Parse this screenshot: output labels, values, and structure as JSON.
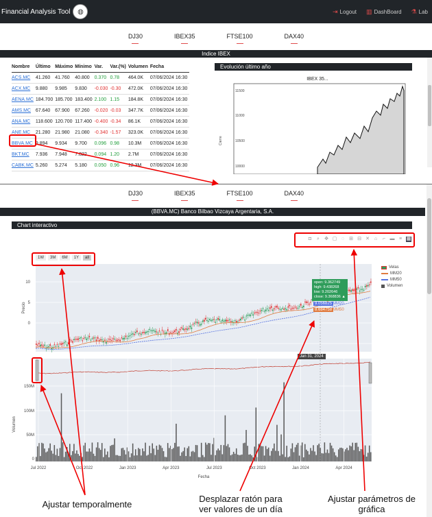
{
  "navbar": {
    "brand": "Financial Analysis Tool",
    "links": [
      {
        "label": "Logout",
        "icon": "logout-icon"
      },
      {
        "label": "DashBoard",
        "icon": "bar-chart-icon"
      },
      {
        "label": "Lab",
        "icon": "flask-icon"
      }
    ]
  },
  "index_tabs": [
    "DJ30",
    "IBEX35",
    "FTSE100",
    "DAX40"
  ],
  "top": {
    "section_title": "Indice IBEX",
    "table": {
      "headers": [
        "Nombre",
        "Último",
        "Máximo",
        "Mínimo",
        "Var.",
        "Var.(%)",
        "Volumen",
        "Fecha"
      ],
      "rows": [
        {
          "name": "ACS.MC",
          "last": "41.260",
          "max": "41.760",
          "min": "40.800",
          "var": "0.370",
          "varp": "0.78",
          "vol": "464.0K",
          "date": "07/06/2024 16:30",
          "sign": "pos"
        },
        {
          "name": "ACX.MC",
          "last": "9.880",
          "max": "9.985",
          "min": "9.830",
          "var": "-0.030",
          "varp": "-0.30",
          "vol": "472.0K",
          "date": "07/06/2024 16:30",
          "sign": "neg"
        },
        {
          "name": "AENA.MC",
          "last": "184.700",
          "max": "185.700",
          "min": "183.400",
          "var": "2.100",
          "varp": "1.15",
          "vol": "184.8K",
          "date": "07/06/2024 16:30",
          "sign": "pos"
        },
        {
          "name": "AMS.MC",
          "last": "67.640",
          "max": "67.900",
          "min": "67.260",
          "var": "-0.020",
          "varp": "-0.03",
          "vol": "347.7K",
          "date": "07/06/2024 16:30",
          "sign": "neg"
        },
        {
          "name": "ANA.MC",
          "last": "118.600",
          "max": "120.700",
          "min": "117.400",
          "var": "-0.400",
          "varp": "-0.34",
          "vol": "86.1K",
          "date": "07/06/2024 16:30",
          "sign": "neg"
        },
        {
          "name": "ANE.MC",
          "last": "21.280",
          "max": "21.980",
          "min": "21.080",
          "var": "-0.340",
          "varp": "-1.57",
          "vol": "323.0K",
          "date": "07/06/2024 16:30",
          "sign": "neg"
        },
        {
          "name": "BBVA.MC",
          "last": "9.894",
          "max": "9.934",
          "min": "9.700",
          "var": "0.096",
          "varp": "0.98",
          "vol": "10.3M",
          "date": "07/06/2024 16:30",
          "sign": "pos"
        },
        {
          "name": "BKT.MC",
          "last": "7.936",
          "max": "7.948",
          "min": "7.822",
          "var": "0.094",
          "varp": "1.20",
          "vol": "2.7M",
          "date": "07/06/2024 16:30",
          "sign": "pos"
        },
        {
          "name": "CABK.MC",
          "last": "5.260",
          "max": "5.274",
          "min": "5.180",
          "var": "0.050",
          "varp": "0.96",
          "vol": "12.3M",
          "date": "07/06/2024 16:30",
          "sign": "pos"
        }
      ]
    },
    "evo_title": "Evolución último año",
    "evo_chart_title": "IBEX 35...",
    "evo_ylabel": "Cierre",
    "evo_yticks": [
      "11500",
      "11000",
      "10500",
      "10000"
    ]
  },
  "bottom": {
    "company_title": "(BBVA.MC) Banco Bilbao Vizcaya Argentaria, S.A.",
    "chart_title": "Chart interactivo",
    "range_buttons": [
      "1W",
      "3M",
      "6M",
      "1Y",
      "all"
    ],
    "legend": [
      "Velas",
      "MM20",
      "MM50",
      "Volumen"
    ],
    "hover": {
      "open": "open: 9.362749",
      "high": "high: 9.438268",
      "low": "low: 9.202646",
      "close": "close: 9.368836 ▲",
      "mm20": "9.056825",
      "mm20_label": "MM20",
      "mm50": "8.684758",
      "mm50_label": "MM50"
    },
    "hover_date": "Jan 31, 2024",
    "price_ylabel": "Precio",
    "volume_ylabel": "Volumen",
    "xlabel": "Fecha",
    "price_yticks": [
      "10",
      "5",
      "0"
    ],
    "volume_yticks": [
      "150M",
      "100M",
      "50M",
      "0"
    ],
    "xticks": [
      "Jul 2022",
      "Oct 2022",
      "Jan 2023",
      "Apr 2023",
      "Jul 2023",
      "Oct 2023",
      "Jan 2024",
      "Apr 2024"
    ],
    "modebar_icons": [
      "camera-icon",
      "zoom-icon",
      "pan-icon",
      "box-select-icon",
      "lasso-icon",
      "zoom-in-icon",
      "zoom-out-icon",
      "autoscale-icon",
      "reset-icon",
      "spike-icon",
      "hover-closest-icon",
      "hover-compare-icon",
      "plotly-logo-icon"
    ]
  },
  "annotations": {
    "temporal": "Ajustar temporalmente",
    "mouse_line1": "Desplazar ratón para",
    "mouse_line2": "ver valores de un día",
    "params_line1": "Ajustar parámetros de",
    "params_line2": "gráfica"
  },
  "colors": {
    "accent_red": "#e00000",
    "dark_bar": "#212529",
    "up": "#2e9c5a",
    "down": "#e03030",
    "mm20": "#e07b3f",
    "mm50": "#5572e0"
  }
}
